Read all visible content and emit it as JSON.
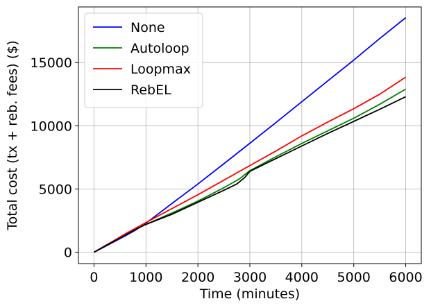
{
  "chart_data": {
    "type": "line",
    "title": "",
    "xlabel": "Time (minutes)",
    "ylabel": "Total cost (tx + reb. fees) ($)",
    "xlim": [
      -300,
      6300
    ],
    "ylim": [
      -900,
      19400
    ],
    "xticks": [
      0,
      1000,
      2000,
      3000,
      4000,
      5000,
      6000
    ],
    "xtick_labels": [
      "0",
      "1000",
      "2000",
      "3000",
      "4000",
      "5000",
      "6000"
    ],
    "yticks": [
      0,
      5000,
      10000,
      15000
    ],
    "ytick_labels": [
      "0",
      "5000",
      "10000",
      "15000"
    ],
    "grid": true,
    "legend_position": "top-left",
    "series": [
      {
        "name": "None",
        "color": "#0000ff",
        "x": [
          0,
          200,
          400,
          600,
          800,
          1000,
          1500,
          2000,
          2500,
          3000,
          3500,
          4000,
          4500,
          5000,
          5500,
          6000
        ],
        "y": [
          0,
          430,
          860,
          1290,
          1750,
          2300,
          3850,
          5400,
          7000,
          8620,
          10250,
          11900,
          13550,
          15200,
          16900,
          18550
        ]
      },
      {
        "name": "Autoloop",
        "color": "#008000",
        "x": [
          0,
          200,
          400,
          600,
          800,
          1000,
          1500,
          2000,
          2500,
          2800,
          3000,
          3500,
          4000,
          4500,
          5000,
          5500,
          6000
        ],
        "y": [
          0,
          480,
          950,
          1430,
          1850,
          2200,
          3100,
          4050,
          5100,
          5800,
          6450,
          7550,
          8600,
          9600,
          10600,
          11700,
          12900
        ]
      },
      {
        "name": "Loopmax",
        "color": "#ff0000",
        "x": [
          0,
          200,
          400,
          600,
          800,
          1000,
          1500,
          2000,
          2500,
          3000,
          3500,
          4000,
          4500,
          5000,
          5500,
          6000
        ],
        "y": [
          0,
          480,
          960,
          1450,
          1900,
          2350,
          3450,
          4550,
          5700,
          6850,
          8000,
          9200,
          10300,
          11350,
          12500,
          13850
        ]
      },
      {
        "name": "RebEL",
        "color": "#000000",
        "x": [
          0,
          200,
          400,
          600,
          800,
          1000,
          1500,
          2000,
          2500,
          2750,
          2900,
          3000,
          3500,
          4000,
          4500,
          5000,
          5500,
          6000
        ],
        "y": [
          0,
          450,
          900,
          1350,
          1800,
          2200,
          3000,
          3950,
          4900,
          5400,
          5900,
          6400,
          7400,
          8400,
          9400,
          10350,
          11300,
          12300
        ]
      }
    ]
  }
}
